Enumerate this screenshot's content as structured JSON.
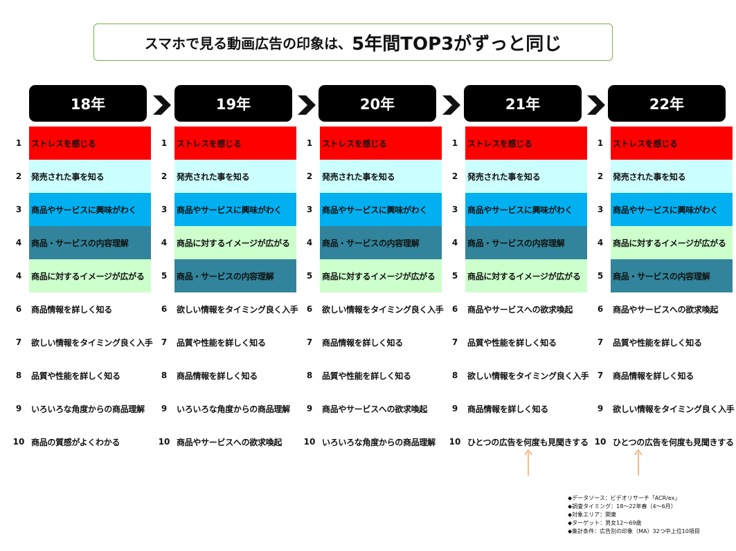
{
  "title": {
    "main": "スマホで見る動画広告の印象は、",
    "emphasis": "5年間TOP3がずっと同じ",
    "border_color": "#78b04a"
  },
  "category_colors": {
    "ストレスを感じる": "#ff0000",
    "発売された事を知る": "#ccffff",
    "商品やサービスに興味がわく": "#00b0f0",
    "商品・サービスの内容理解": "#31849b",
    "商品に対するイメージが広がる": "#ccffcc"
  },
  "columns": [
    {
      "year": "18年",
      "ranks": [
        {
          "rank": "1",
          "label": "ストレスを感じる"
        },
        {
          "rank": "2",
          "label": "発売された事を知る"
        },
        {
          "rank": "3",
          "label": "商品やサービスに興味がわく"
        },
        {
          "rank": "4",
          "label": "商品・サービスの内容理解"
        },
        {
          "rank": "4",
          "label": "商品に対するイメージが広がる"
        },
        {
          "rank": "6",
          "label": "商品情報を詳しく知る"
        },
        {
          "rank": "7",
          "label": "欲しい情報をタイミング良く入手"
        },
        {
          "rank": "8",
          "label": "品質や性能を詳しく知る"
        },
        {
          "rank": "9",
          "label": "いろいろな角度からの商品理解"
        },
        {
          "rank": "10",
          "label": "商品の質感がよくわかる"
        }
      ]
    },
    {
      "year": "19年",
      "ranks": [
        {
          "rank": "1",
          "label": "ストレスを感じる"
        },
        {
          "rank": "2",
          "label": "発売された事を知る"
        },
        {
          "rank": "3",
          "label": "商品やサービスに興味がわく"
        },
        {
          "rank": "4",
          "label": "商品に対するイメージが広がる"
        },
        {
          "rank": "5",
          "label": "商品・サービスの内容理解"
        },
        {
          "rank": "6",
          "label": "欲しい情報をタイミング良く入手"
        },
        {
          "rank": "7",
          "label": "品質や性能を詳しく知る"
        },
        {
          "rank": "8",
          "label": "商品情報を詳しく知る"
        },
        {
          "rank": "9",
          "label": "いろいろな角度からの商品理解"
        },
        {
          "rank": "10",
          "label": "商品やサービスへの欲求喚起"
        }
      ]
    },
    {
      "year": "20年",
      "ranks": [
        {
          "rank": "1",
          "label": "ストレスを感じる"
        },
        {
          "rank": "2",
          "label": "発売された事を知る"
        },
        {
          "rank": "3",
          "label": "商品やサービスに興味がわく"
        },
        {
          "rank": "4",
          "label": "商品・サービスの内容理解"
        },
        {
          "rank": "5",
          "label": "商品に対するイメージが広がる"
        },
        {
          "rank": "6",
          "label": "欲しい情報をタイミング良く入手"
        },
        {
          "rank": "7",
          "label": "商品情報を詳しく知る"
        },
        {
          "rank": "8",
          "label": "品質や性能を詳しく知る"
        },
        {
          "rank": "9",
          "label": "商品やサービスへの欲求喚起"
        },
        {
          "rank": "10",
          "label": "いろいろな角度からの商品理解"
        }
      ]
    },
    {
      "year": "21年",
      "ranks": [
        {
          "rank": "1",
          "label": "ストレスを感じる"
        },
        {
          "rank": "2",
          "label": "発売された事を知る"
        },
        {
          "rank": "3",
          "label": "商品やサービスに興味がわく"
        },
        {
          "rank": "4",
          "label": "商品・サービスの内容理解"
        },
        {
          "rank": "5",
          "label": "商品に対するイメージが広がる"
        },
        {
          "rank": "6",
          "label": "商品やサービスへの欲求喚起"
        },
        {
          "rank": "7",
          "label": "品質や性能を詳しく知る"
        },
        {
          "rank": "8",
          "label": "欲しい情報をタイミング良く入手"
        },
        {
          "rank": "9",
          "label": "商品情報を詳しく知る"
        },
        {
          "rank": "10",
          "label": "ひとつの広告を何度も見聞きする"
        }
      ]
    },
    {
      "year": "22年",
      "ranks": [
        {
          "rank": "1",
          "label": "ストレスを感じる"
        },
        {
          "rank": "2",
          "label": "発売された事を知る"
        },
        {
          "rank": "3",
          "label": "商品やサービスに興味がわく"
        },
        {
          "rank": "4",
          "label": "商品に対するイメージが広がる"
        },
        {
          "rank": "5",
          "label": "商品・サービスの内容理解"
        },
        {
          "rank": "6",
          "label": "商品やサービスへの欲求喚起"
        },
        {
          "rank": "7",
          "label": "品質や性能を詳しく知る"
        },
        {
          "rank": "7",
          "label": "商品情報を詳しく知る"
        },
        {
          "rank": "9",
          "label": "欲しい情報をタイミング良く入手"
        },
        {
          "rank": "10",
          "label": "ひとつの広告を何度も見聞きする"
        }
      ]
    }
  ],
  "arrow_color": "#f4a460",
  "notes": [
    "◆データソース：ビデオリサーチ「ACR/ex」",
    "◆調査タイミング：18～22年春（4～6月）",
    "◆対象エリア：関東",
    "◆ターゲット：男女12～69歳",
    "◆集計条件：広告別の印象（MA）32つ中上位10項目"
  ]
}
